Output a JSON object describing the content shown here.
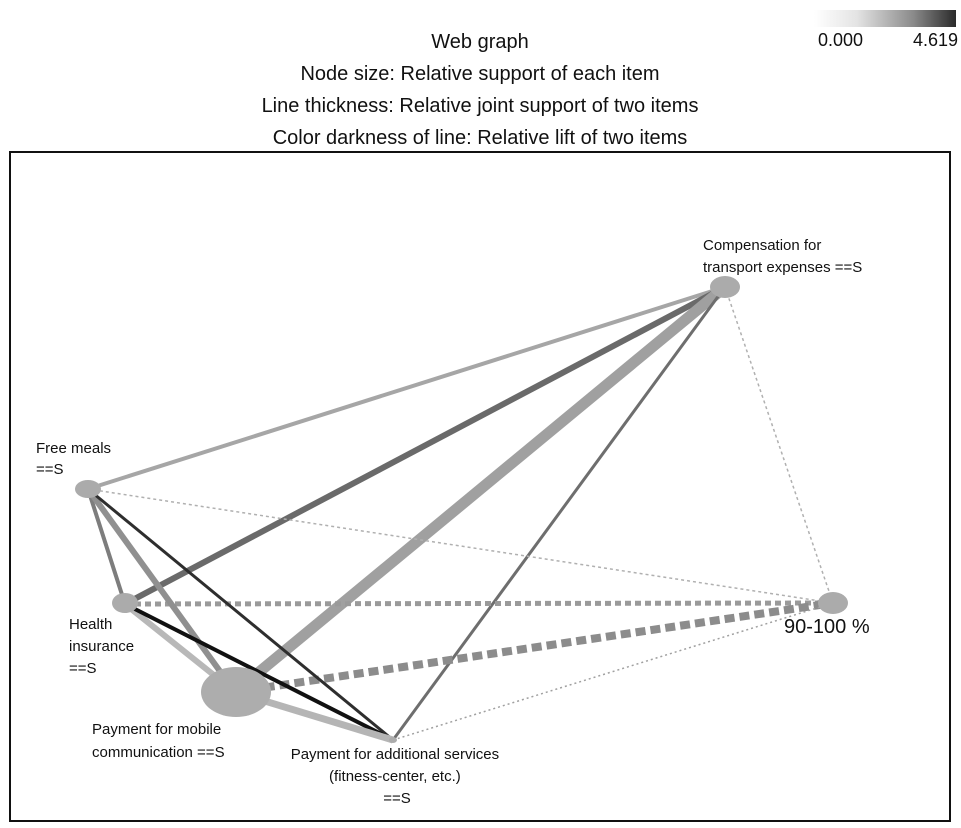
{
  "title_lines": [
    "Web graph",
    "Node size: Relative support of each item",
    "Line thickness: Relative joint support of two items",
    "Color darkness of line: Relative lift of two items"
  ],
  "legend": {
    "min": "0.000",
    "max": "4.619"
  },
  "nodes": [
    {
      "id": "compensation",
      "label": [
        "Compensation for",
        "transport expenses ==S"
      ]
    },
    {
      "id": "free-meals",
      "label": [
        "Free meals",
        "==S"
      ]
    },
    {
      "id": "health",
      "label": [
        "Health",
        "insurance",
        "==S"
      ]
    },
    {
      "id": "mobile",
      "label": [
        "Payment for mobile",
        "communication ==S"
      ]
    },
    {
      "id": "additional",
      "label": [
        "Payment for additional services",
        "(fitness-center, etc.)",
        "==S"
      ]
    },
    {
      "id": "percent",
      "label": [
        "90-100 %"
      ]
    }
  ]
}
